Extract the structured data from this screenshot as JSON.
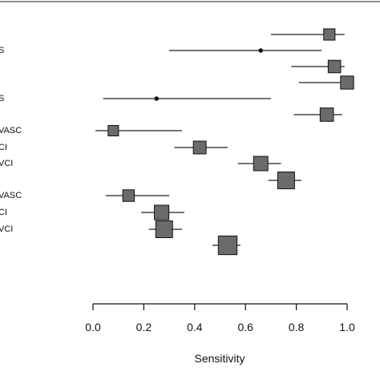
{
  "chart_data": {
    "type": "forest",
    "xlabel": "Sensitivity",
    "xlim": [
      0.0,
      1.0
    ],
    "xticks": [
      "0.0",
      "0.2",
      "0.4",
      "0.6",
      "0.8",
      "1.0"
    ],
    "grid": false,
    "row_labels": [
      "",
      "S",
      "",
      "",
      "S",
      "",
      "VASC",
      "CI",
      "VCI",
      "",
      "VASC",
      "CI",
      "VCI"
    ],
    "estimates": [
      {
        "row": 0,
        "value": 0.93,
        "lower": 0.7,
        "upper": 0.99,
        "weight": 0.34,
        "marker": "square"
      },
      {
        "row": 1,
        "value": 0.66,
        "lower": 0.3,
        "upper": 0.9,
        "weight": 0.1,
        "marker": "dot"
      },
      {
        "row": 2,
        "value": 0.95,
        "lower": 0.78,
        "upper": 0.99,
        "weight": 0.42,
        "marker": "square"
      },
      {
        "row": 3,
        "value": 1.0,
        "lower": 0.81,
        "upper": 1.0,
        "weight": 0.46,
        "marker": "square"
      },
      {
        "row": 4,
        "value": 0.25,
        "lower": 0.04,
        "upper": 0.7,
        "weight": 0.1,
        "marker": "dot"
      },
      {
        "row": 5,
        "value": 0.92,
        "lower": 0.79,
        "upper": 0.98,
        "weight": 0.48,
        "marker": "square"
      },
      {
        "row": 6,
        "value": 0.08,
        "lower": 0.01,
        "upper": 0.35,
        "weight": 0.28,
        "marker": "square"
      },
      {
        "row": 7,
        "value": 0.42,
        "lower": 0.32,
        "upper": 0.53,
        "weight": 0.44,
        "marker": "square"
      },
      {
        "row": 8,
        "value": 0.66,
        "lower": 0.57,
        "upper": 0.74,
        "weight": 0.55,
        "marker": "square"
      },
      {
        "row": 9,
        "value": 0.76,
        "lower": 0.69,
        "upper": 0.82,
        "weight": 0.72,
        "marker": "square"
      },
      {
        "row": 10,
        "value": 0.14,
        "lower": 0.05,
        "upper": 0.3,
        "weight": 0.36,
        "marker": "square"
      },
      {
        "row": 11,
        "value": 0.27,
        "lower": 0.19,
        "upper": 0.36,
        "weight": 0.56,
        "marker": "square"
      },
      {
        "row": 12,
        "value": 0.28,
        "lower": 0.22,
        "upper": 0.35,
        "weight": 0.72,
        "marker": "square"
      },
      {
        "row": 13,
        "value": 0.53,
        "lower": 0.47,
        "upper": 0.58,
        "weight": 0.85,
        "marker": "square"
      }
    ],
    "colors": {
      "marker_fill": "#6b6b6b",
      "marker_stroke": "#111111",
      "ci_line": "#222222",
      "axis": "#111111"
    }
  }
}
